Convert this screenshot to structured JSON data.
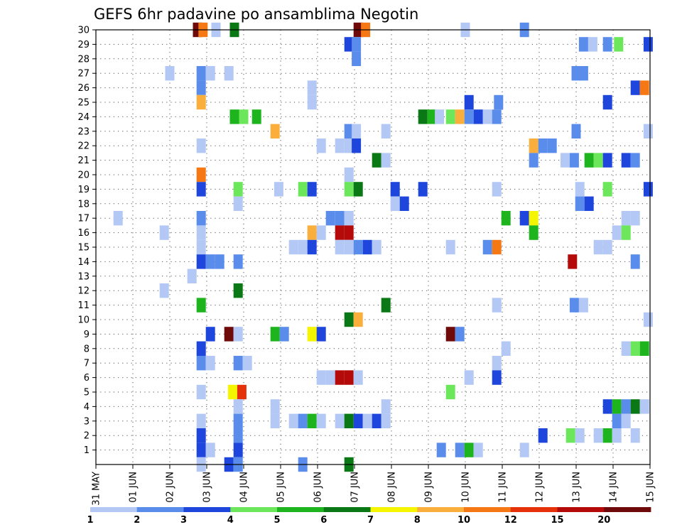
{
  "chart_data": {
    "type": "heatmap",
    "title": "GEFS 6hr padavine po ansamblima Negotin",
    "y_ticks": [
      "1",
      "2",
      "3",
      "4",
      "5",
      "6",
      "7",
      "8",
      "9",
      "10",
      "11",
      "12",
      "13",
      "14",
      "15",
      "16",
      "17",
      "18",
      "19",
      "20",
      "21",
      "22",
      "23",
      "24",
      "25",
      "26",
      "27",
      "28",
      "29",
      "30"
    ],
    "x_ticks": [
      "31 MAY",
      "01 JUN",
      "02 JUN",
      "03 JUN",
      "04 JUN",
      "05 JUN",
      "06 JUN",
      "07 JUN",
      "08 JUN",
      "09 JUN",
      "10 JUN",
      "11 JUN",
      "12 JUN",
      "13 JUN",
      "14 JUN",
      "15 JUN"
    ],
    "grid": "dotted",
    "legend_position": "bottom",
    "legend": [
      {
        "label": "1",
        "color": "#b3c8f5"
      },
      {
        "label": "2",
        "color": "#5a8cec"
      },
      {
        "label": "3",
        "color": "#1e46dc"
      },
      {
        "label": "4",
        "color": "#6ce65a"
      },
      {
        "label": "5",
        "color": "#1eb41e"
      },
      {
        "label": "6",
        "color": "#0a7814"
      },
      {
        "label": "7",
        "color": "#f5f500"
      },
      {
        "label": "8",
        "color": "#faaf3c"
      },
      {
        "label": "10",
        "color": "#f57814"
      },
      {
        "label": "12",
        "color": "#e6320a"
      },
      {
        "label": "15",
        "color": "#b40a0a"
      },
      {
        "label": "20",
        "color": "#6e0a0a"
      }
    ],
    "cells": [
      [
        30,
        2.75,
        20
      ],
      [
        30,
        2.9,
        10
      ],
      [
        30,
        3.25,
        1
      ],
      [
        30,
        3.75,
        6
      ],
      [
        30,
        7.1,
        20
      ],
      [
        30,
        7.3,
        10
      ],
      [
        30,
        10,
        1
      ],
      [
        30,
        11.6,
        2
      ],
      [
        29,
        6.85,
        3
      ],
      [
        29,
        7.05,
        2
      ],
      [
        29,
        13.2,
        2
      ],
      [
        29,
        13.45,
        1
      ],
      [
        29,
        13.85,
        2
      ],
      [
        29,
        14.15,
        4
      ],
      [
        29,
        14.95,
        3
      ],
      [
        28,
        7.05,
        2
      ],
      [
        27,
        2.0,
        1
      ],
      [
        27,
        2.85,
        2
      ],
      [
        27,
        3.1,
        1
      ],
      [
        27,
        3.6,
        1
      ],
      [
        27,
        13.0,
        2
      ],
      [
        27,
        13.2,
        2
      ],
      [
        26,
        2.85,
        2
      ],
      [
        26,
        5.85,
        1
      ],
      [
        26,
        14.6,
        3
      ],
      [
        26,
        14.85,
        10
      ],
      [
        25,
        2.85,
        8
      ],
      [
        25,
        5.85,
        1
      ],
      [
        25,
        10.1,
        3
      ],
      [
        25,
        10.9,
        2
      ],
      [
        25,
        13.85,
        3
      ],
      [
        24,
        3.75,
        5
      ],
      [
        24,
        4.0,
        4
      ],
      [
        24,
        4.35,
        5
      ],
      [
        24,
        8.85,
        6
      ],
      [
        24,
        9.1,
        5
      ],
      [
        24,
        9.3,
        1
      ],
      [
        24,
        9.6,
        4
      ],
      [
        24,
        9.85,
        8
      ],
      [
        24,
        10.1,
        2
      ],
      [
        24,
        10.35,
        3
      ],
      [
        24,
        10.6,
        1
      ],
      [
        24,
        10.85,
        2
      ],
      [
        23,
        4.85,
        8
      ],
      [
        23,
        6.85,
        2
      ],
      [
        23,
        7.05,
        1
      ],
      [
        23,
        7.85,
        1
      ],
      [
        23,
        13.0,
        2
      ],
      [
        23,
        14.95,
        1
      ],
      [
        22,
        2.85,
        1
      ],
      [
        22,
        6.1,
        1
      ],
      [
        22,
        6.6,
        1
      ],
      [
        22,
        6.85,
        1
      ],
      [
        22,
        7.05,
        3
      ],
      [
        22,
        11.85,
        8
      ],
      [
        22,
        12.1,
        2
      ],
      [
        22,
        12.35,
        2
      ],
      [
        21,
        7.6,
        6
      ],
      [
        21,
        7.85,
        1
      ],
      [
        21,
        11.85,
        2
      ],
      [
        21,
        12.7,
        1
      ],
      [
        21,
        12.95,
        2
      ],
      [
        21,
        13.35,
        5
      ],
      [
        21,
        13.6,
        4
      ],
      [
        21,
        13.85,
        3
      ],
      [
        21,
        14.35,
        3
      ],
      [
        21,
        14.6,
        2
      ],
      [
        20,
        2.85,
        10
      ],
      [
        20,
        6.85,
        1
      ],
      [
        19,
        2.85,
        3
      ],
      [
        19,
        3.85,
        4
      ],
      [
        19,
        4.95,
        1
      ],
      [
        19,
        5.6,
        4
      ],
      [
        19,
        5.85,
        3
      ],
      [
        19,
        6.85,
        4
      ],
      [
        19,
        7.1,
        6
      ],
      [
        19,
        8.1,
        3
      ],
      [
        19,
        8.85,
        3
      ],
      [
        19,
        10.85,
        1
      ],
      [
        19,
        13.1,
        1
      ],
      [
        19,
        13.85,
        4
      ],
      [
        19,
        14.95,
        3
      ],
      [
        18,
        3.85,
        1
      ],
      [
        18,
        8.1,
        1
      ],
      [
        18,
        8.35,
        3
      ],
      [
        18,
        13.1,
        2
      ],
      [
        18,
        13.35,
        3
      ],
      [
        17,
        0.6,
        1
      ],
      [
        17,
        2.85,
        2
      ],
      [
        17,
        6.35,
        2
      ],
      [
        17,
        6.6,
        2
      ],
      [
        17,
        6.85,
        1
      ],
      [
        17,
        11.1,
        5
      ],
      [
        17,
        11.6,
        3
      ],
      [
        17,
        11.85,
        7
      ],
      [
        17,
        14.35,
        1
      ],
      [
        17,
        14.6,
        1
      ],
      [
        16,
        1.85,
        1
      ],
      [
        16,
        2.85,
        1
      ],
      [
        16,
        5.85,
        8
      ],
      [
        16,
        6.1,
        1
      ],
      [
        16,
        6.6,
        15
      ],
      [
        16,
        6.85,
        15
      ],
      [
        16,
        11.85,
        5
      ],
      [
        16,
        14.1,
        1
      ],
      [
        16,
        14.35,
        4
      ],
      [
        15,
        2.85,
        1
      ],
      [
        15,
        5.35,
        1
      ],
      [
        15,
        5.6,
        1
      ],
      [
        15,
        5.85,
        3
      ],
      [
        15,
        6.6,
        1
      ],
      [
        15,
        6.85,
        1
      ],
      [
        15,
        7.1,
        2
      ],
      [
        15,
        7.35,
        3
      ],
      [
        15,
        7.6,
        1
      ],
      [
        15,
        9.6,
        1
      ],
      [
        15,
        10.6,
        2
      ],
      [
        15,
        10.85,
        10
      ],
      [
        15,
        13.6,
        1
      ],
      [
        15,
        13.85,
        1
      ],
      [
        14,
        2.85,
        3
      ],
      [
        14,
        3.1,
        2
      ],
      [
        14,
        3.35,
        2
      ],
      [
        14,
        3.85,
        2
      ],
      [
        14,
        12.9,
        15
      ],
      [
        14,
        14.6,
        2
      ],
      [
        13,
        2.6,
        1
      ],
      [
        12,
        1.85,
        1
      ],
      [
        12,
        3.85,
        6
      ],
      [
        11,
        2.85,
        5
      ],
      [
        11,
        7.85,
        6
      ],
      [
        11,
        10.85,
        1
      ],
      [
        11,
        12.95,
        2
      ],
      [
        11,
        13.2,
        1
      ],
      [
        10,
        6.85,
        6
      ],
      [
        10,
        7.1,
        8
      ],
      [
        10,
        14.95,
        1
      ],
      [
        9,
        3.1,
        3
      ],
      [
        9,
        3.6,
        20
      ],
      [
        9,
        3.85,
        1
      ],
      [
        9,
        4.85,
        5
      ],
      [
        9,
        5.1,
        2
      ],
      [
        9,
        5.85,
        7
      ],
      [
        9,
        6.1,
        3
      ],
      [
        9,
        9.6,
        20
      ],
      [
        9,
        9.85,
        2
      ],
      [
        8,
        2.85,
        3
      ],
      [
        8,
        11.1,
        1
      ],
      [
        8,
        14.35,
        1
      ],
      [
        8,
        14.6,
        4
      ],
      [
        8,
        14.85,
        5
      ],
      [
        7,
        2.85,
        2
      ],
      [
        7,
        3.1,
        1
      ],
      [
        7,
        3.85,
        2
      ],
      [
        7,
        4.1,
        1
      ],
      [
        7,
        10.85,
        1
      ],
      [
        6,
        6.1,
        1
      ],
      [
        6,
        6.35,
        1
      ],
      [
        6,
        6.6,
        15
      ],
      [
        6,
        6.85,
        15
      ],
      [
        6,
        7.1,
        1
      ],
      [
        6,
        10.1,
        1
      ],
      [
        6,
        10.85,
        3
      ],
      [
        5,
        2.85,
        1
      ],
      [
        5,
        3.7,
        7
      ],
      [
        5,
        3.95,
        12
      ],
      [
        5,
        9.6,
        4
      ],
      [
        4,
        3.85,
        1
      ],
      [
        4,
        4.85,
        1
      ],
      [
        4,
        7.85,
        1
      ],
      [
        4,
        13.85,
        3
      ],
      [
        4,
        14.1,
        5
      ],
      [
        4,
        14.35,
        2
      ],
      [
        4,
        14.6,
        6
      ],
      [
        4,
        14.85,
        1
      ],
      [
        3,
        2.85,
        1
      ],
      [
        3,
        3.85,
        2
      ],
      [
        3,
        4.85,
        1
      ],
      [
        3,
        5.35,
        1
      ],
      [
        3,
        5.6,
        2
      ],
      [
        3,
        5.85,
        5
      ],
      [
        3,
        6.1,
        1
      ],
      [
        3,
        6.6,
        1
      ],
      [
        3,
        6.85,
        6
      ],
      [
        3,
        7.1,
        3
      ],
      [
        3,
        7.35,
        1
      ],
      [
        3,
        7.6,
        3
      ],
      [
        3,
        7.85,
        1
      ],
      [
        3,
        14.1,
        2
      ],
      [
        3,
        14.35,
        1
      ],
      [
        2,
        2.85,
        3
      ],
      [
        2,
        3.85,
        2
      ],
      [
        2,
        12.1,
        3
      ],
      [
        2,
        12.85,
        4
      ],
      [
        2,
        13.1,
        1
      ],
      [
        2,
        13.6,
        1
      ],
      [
        2,
        13.85,
        5
      ],
      [
        2,
        14.1,
        1
      ],
      [
        2,
        14.6,
        1
      ],
      [
        1,
        2.85,
        3
      ],
      [
        1,
        3.1,
        1
      ],
      [
        1,
        3.85,
        3
      ],
      [
        1,
        9.35,
        2
      ],
      [
        1,
        9.85,
        2
      ],
      [
        1,
        10.1,
        5
      ],
      [
        1,
        10.35,
        1
      ],
      [
        1,
        11.6,
        1
      ],
      [
        0,
        2.85,
        1
      ],
      [
        0,
        3.6,
        3
      ],
      [
        0,
        3.85,
        2
      ],
      [
        0,
        5.6,
        2
      ],
      [
        0,
        6.85,
        6
      ]
    ]
  }
}
